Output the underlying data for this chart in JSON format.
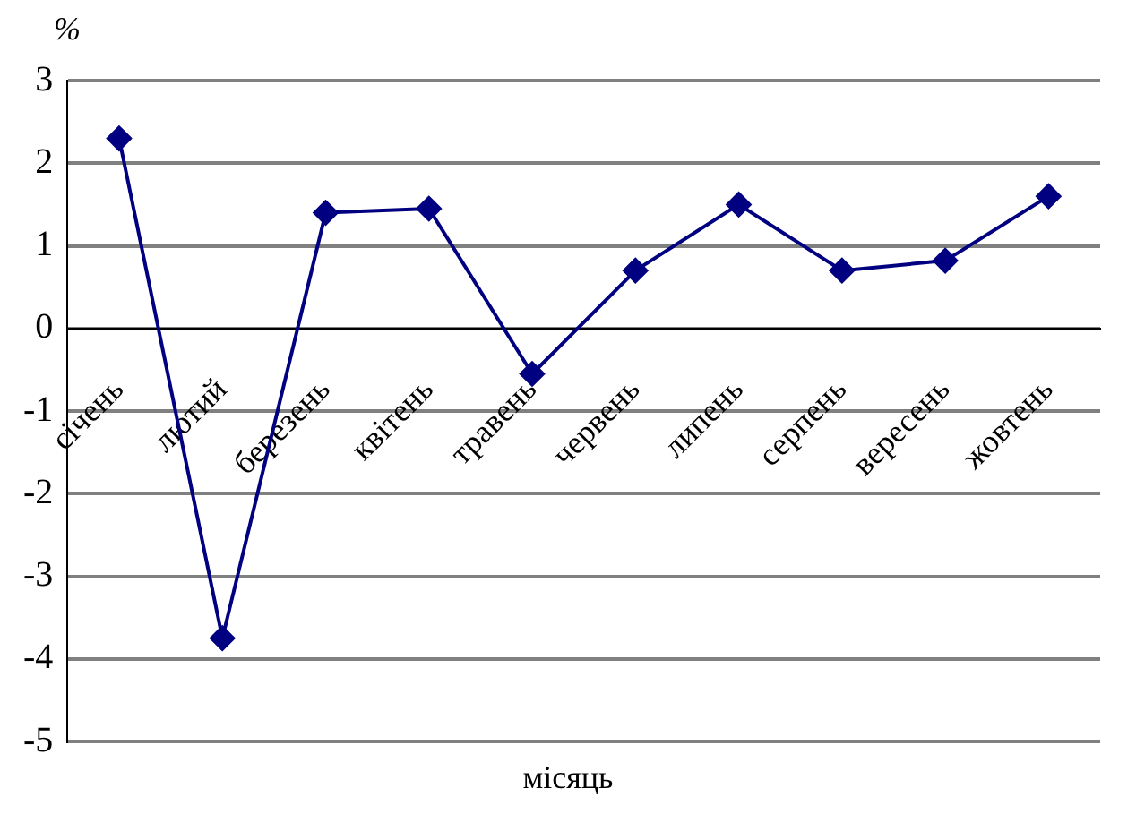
{
  "chart_data": {
    "type": "line",
    "xlabel": "місяць",
    "ylabel": "%",
    "categories": [
      "січень",
      "лютий",
      "березень",
      "квітень",
      "травень",
      "червень",
      "липень",
      "серпень",
      "вересень",
      "жовтень"
    ],
    "series": [
      {
        "color": "#000080",
        "values": [
          2.3,
          -3.75,
          1.4,
          1.45,
          -0.55,
          0.7,
          1.5,
          0.7,
          0.82,
          1.6
        ]
      }
    ],
    "ylim": [
      -5,
      3
    ],
    "yticks": [
      -5,
      -4,
      -3,
      -2,
      -1,
      0,
      1,
      2,
      3
    ],
    "grid": "y",
    "legend": false,
    "marker": "diamond",
    "line_style": "solid"
  }
}
